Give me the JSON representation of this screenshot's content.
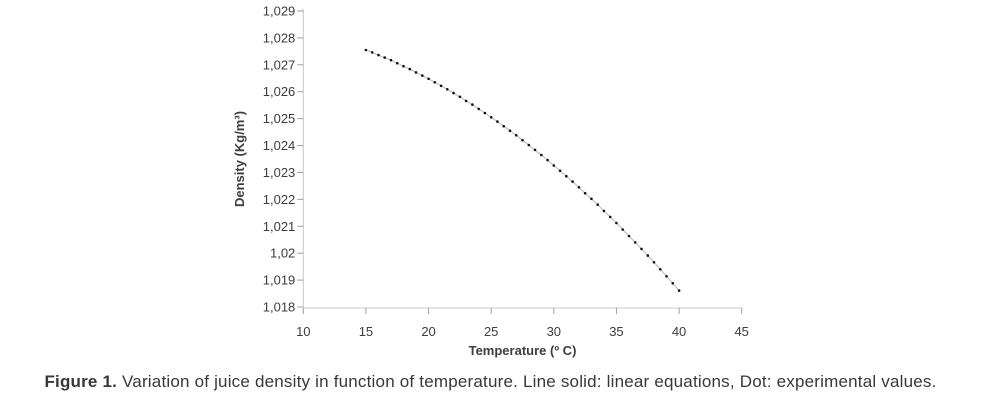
{
  "figure": {
    "caption_label": "Figure 1.",
    "caption_text": " Variation of juice density in function of temperature. Line solid: linear equations, Dot: experimental values."
  },
  "chart_data": {
    "type": "scatter",
    "title": "",
    "xlabel": "Temperature (º C)",
    "ylabel": "Density (Kg/m³)",
    "xlim": [
      10,
      45
    ],
    "ylim": [
      1.018,
      1.029
    ],
    "grid": false,
    "legend_position": "none",
    "x_ticks": [
      10,
      15,
      20,
      25,
      30,
      35,
      40,
      45
    ],
    "y_tick_labels": [
      "1,029",
      "1,028",
      "1,027",
      "1,026",
      "1,025",
      "1,024",
      "1,023",
      "1,022",
      "1,021",
      "1,02",
      "1,019",
      "1,018"
    ],
    "y_tick_values": [
      1.029,
      1.028,
      1.027,
      1.026,
      1.025,
      1.024,
      1.023,
      1.022,
      1.021,
      1.02,
      1.019,
      1.018
    ],
    "x": [
      15,
      15.5,
      16,
      16.5,
      17,
      17.5,
      18,
      18.5,
      19,
      19.5,
      20,
      20.5,
      21,
      21.5,
      22,
      22.5,
      23,
      23.5,
      24,
      24.5,
      25,
      25.5,
      26,
      26.5,
      27,
      27.5,
      28,
      28.5,
      29,
      29.5,
      30,
      30.5,
      31,
      31.5,
      32,
      32.5,
      33,
      33.5,
      34,
      34.5,
      35,
      35.5,
      36,
      36.5,
      37,
      37.5,
      38,
      38.5,
      39,
      39.5,
      40
    ],
    "series": [
      {
        "name": "experimental values",
        "style": "dots",
        "color": "#111111",
        "y": [
          1.02755,
          1.02746,
          1.02736,
          1.02727,
          1.02717,
          1.02706,
          1.02695,
          1.02684,
          1.02672,
          1.0266,
          1.02648,
          1.02635,
          1.02622,
          1.02609,
          1.02595,
          1.02581,
          1.02566,
          1.02552,
          1.02536,
          1.02521,
          1.02505,
          1.02489,
          1.02472,
          1.02455,
          1.02438,
          1.0242,
          1.02402,
          1.02384,
          1.02365,
          1.02346,
          1.02326,
          1.02306,
          1.02286,
          1.02266,
          1.02245,
          1.02223,
          1.02202,
          1.0218,
          1.02157,
          1.02135,
          1.02112,
          1.02088,
          1.02064,
          1.0204,
          1.02016,
          1.01991,
          1.01966,
          1.0194,
          1.01914,
          1.01888,
          1.01861
        ]
      },
      {
        "name": "linear equations",
        "style": "solid-line",
        "color": "#b8b8b8",
        "y_same_as": 0
      }
    ],
    "axis_color": "#c8c8c8",
    "tick_color": "#9f9f9f",
    "label_color": "#3d3d3d"
  }
}
